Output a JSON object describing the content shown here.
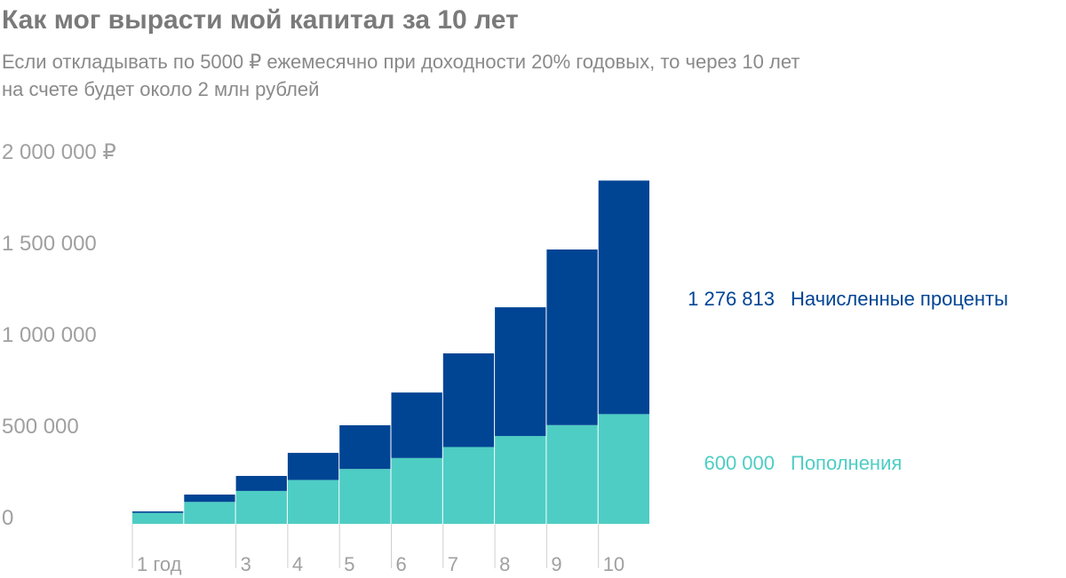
{
  "chart_data": {
    "type": "stacked_bar",
    "title": "Как мог вырасти мой капитал за 10 лет",
    "subtitle": [
      "Если откладывать по 5000 ₽ ежемесячно при доходности 20% годовых, то через 10 лет",
      "на счете будет около 2 млн рублей"
    ],
    "categories": [
      "1 год",
      null,
      "3",
      "4",
      "5",
      "6",
      "7",
      "8",
      "9",
      "10"
    ],
    "series": [
      {
        "name": "Пополнения",
        "color": "#4ecdc4",
        "values": [
          60000,
          120000,
          180000,
          240000,
          300000,
          360000,
          420000,
          480000,
          540000,
          600000
        ],
        "value_labels": [
          null,
          null,
          null,
          null,
          null,
          null,
          null,
          null,
          null,
          "600 000"
        ]
      },
      {
        "name": "Начисленные проценты",
        "color": "#004494",
        "values": [
          8000,
          40000,
          82000,
          148000,
          239000,
          358000,
          512000,
          704000,
          960000,
          1276813
        ],
        "value_labels": [
          null,
          null,
          null,
          null,
          null,
          null,
          null,
          null,
          null,
          "1 276 813"
        ]
      }
    ],
    "ylim": [
      0,
      2000000
    ],
    "yticks": [
      0,
      {
        "value": 500000,
        "label": "500 000"
      },
      {
        "value": 1000000,
        "label": "1 000 000"
      },
      {
        "value": 1500000,
        "label": "1 500 000"
      },
      {
        "value": 2000000,
        "label": "2 000 000 ₽"
      }
    ],
    "grid": false
  }
}
